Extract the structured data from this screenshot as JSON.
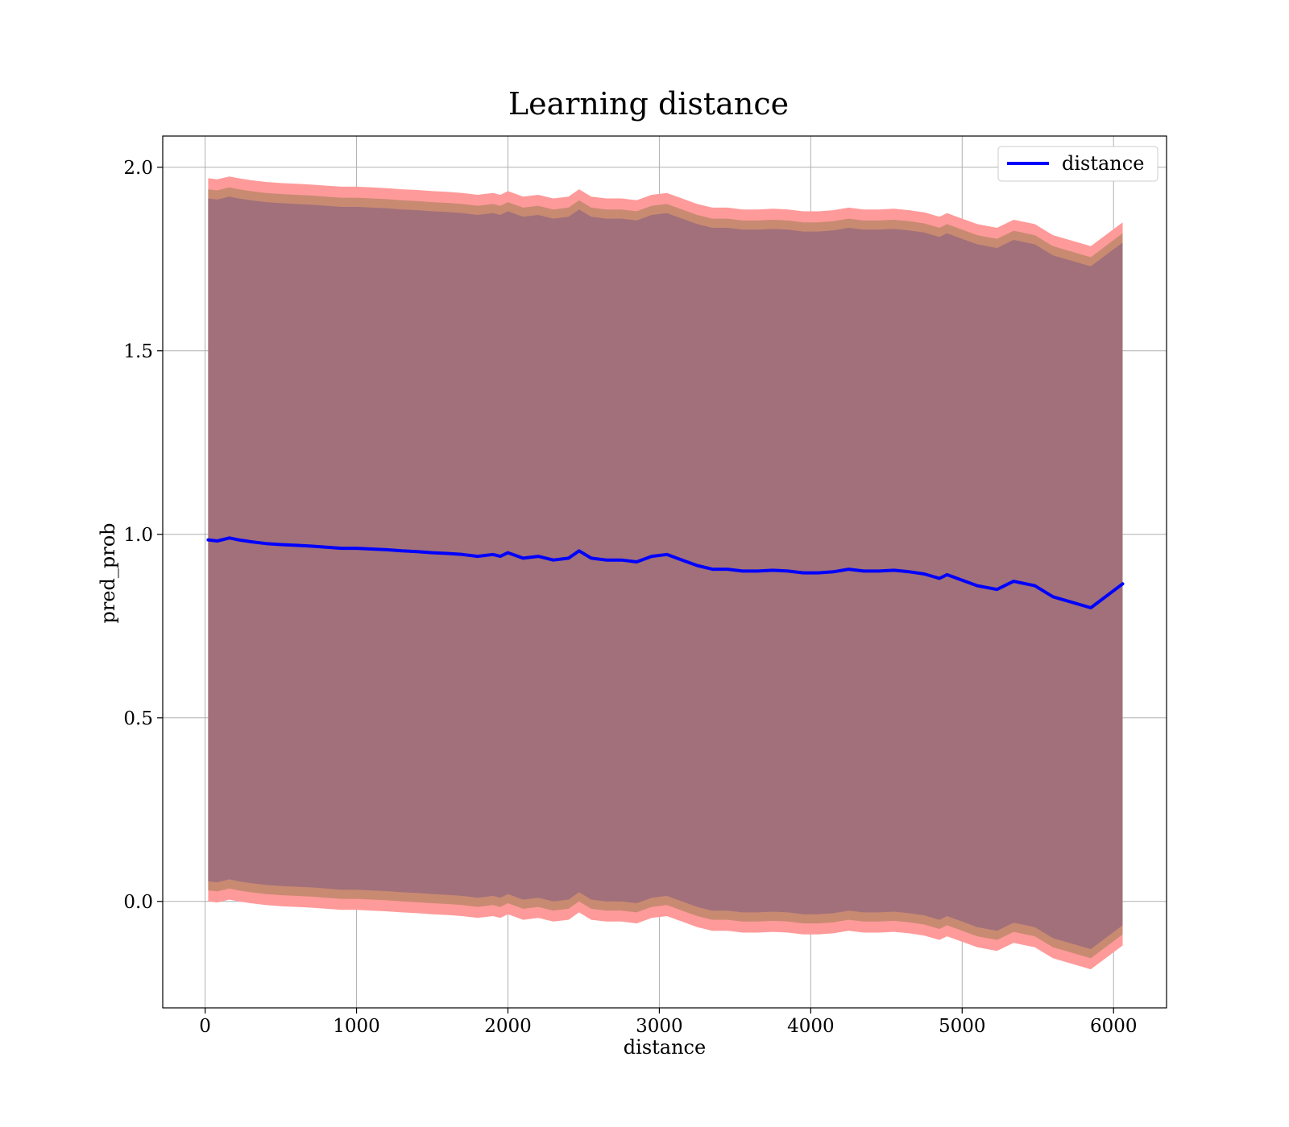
{
  "chart_data": {
    "type": "line",
    "title": "Learning distance",
    "xlabel": "distance",
    "ylabel": "pred_prob",
    "xlim": [
      -280,
      6350
    ],
    "ylim": [
      -0.29,
      2.085
    ],
    "xticks": [
      0,
      1000,
      2000,
      3000,
      4000,
      5000,
      6000
    ],
    "yticks": [
      0.0,
      0.5,
      1.0,
      1.5,
      2.0
    ],
    "xtick_labels": [
      "0",
      "1000",
      "2000",
      "3000",
      "4000",
      "5000",
      "6000"
    ],
    "ytick_labels": [
      "0.0",
      "0.5",
      "1.0",
      "1.5",
      "2.0"
    ],
    "grid": true,
    "legend": {
      "position": "top-right",
      "entries": [
        "distance"
      ]
    },
    "colors": {
      "line": "#0000ff",
      "band_outer": "#ff9a9a",
      "band_middle": "#c98a72",
      "band_inner": "#a1707a",
      "grid": "#b0b0b0"
    },
    "series": [
      {
        "name": "distance",
        "x": [
          20,
          80,
          160,
          220,
          300,
          400,
          500,
          600,
          700,
          800,
          900,
          1000,
          1100,
          1200,
          1300,
          1400,
          1500,
          1600,
          1700,
          1800,
          1900,
          1950,
          2000,
          2100,
          2200,
          2300,
          2400,
          2470,
          2550,
          2650,
          2750,
          2850,
          2950,
          3050,
          3150,
          3250,
          3350,
          3450,
          3550,
          3650,
          3750,
          3850,
          3950,
          4050,
          4150,
          4250,
          4350,
          4450,
          4550,
          4650,
          4750,
          4850,
          4900,
          5000,
          5100,
          5230,
          5340,
          5480,
          5600,
          5850,
          6060
        ],
        "y": [
          0.985,
          0.982,
          0.99,
          0.985,
          0.98,
          0.975,
          0.972,
          0.97,
          0.968,
          0.965,
          0.962,
          0.962,
          0.96,
          0.958,
          0.955,
          0.953,
          0.95,
          0.948,
          0.945,
          0.94,
          0.945,
          0.94,
          0.95,
          0.935,
          0.94,
          0.93,
          0.935,
          0.955,
          0.935,
          0.93,
          0.93,
          0.925,
          0.94,
          0.945,
          0.93,
          0.915,
          0.905,
          0.905,
          0.9,
          0.9,
          0.902,
          0.9,
          0.895,
          0.895,
          0.898,
          0.905,
          0.9,
          0.9,
          0.902,
          0.898,
          0.892,
          0.88,
          0.89,
          0.875,
          0.86,
          0.85,
          0.872,
          0.86,
          0.83,
          0.8,
          0.865
        ],
        "band_outer_half_width": 0.985,
        "band_middle_half_width": 0.955,
        "band_inner_half_width": 0.93
      }
    ]
  }
}
